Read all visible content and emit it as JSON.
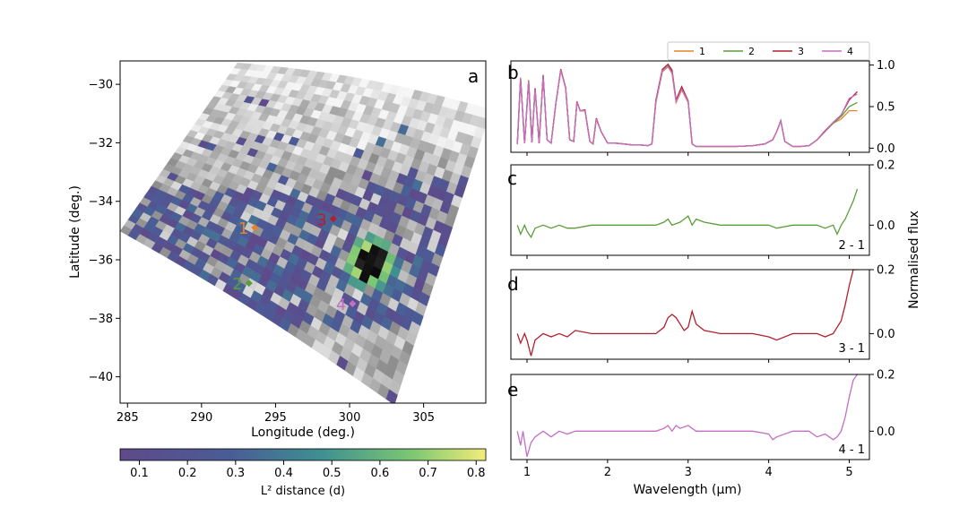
{
  "chart_data": [
    {
      "panel": "a",
      "type": "heatmap",
      "panel_label": "a",
      "xlabel": "Longitude (deg.)",
      "ylabel": "Latitude (deg.)",
      "xlim": [
        284.5,
        309.2
      ],
      "ylim": [
        -40.9,
        -29.2
      ],
      "xticks": [
        285,
        290,
        295,
        300,
        305
      ],
      "yticks": [
        -30,
        -32,
        -34,
        -36,
        -38,
        -40
      ],
      "colorbar": {
        "label": "L² distance (d)",
        "range": [
          0.06,
          0.82
        ],
        "ticks": [
          0.1,
          0.2,
          0.3,
          0.4,
          0.5,
          0.6,
          0.7,
          0.8
        ]
      },
      "points": [
        {
          "label": "1",
          "lon": 293.6,
          "lat": -34.9,
          "color": "#e8822a"
        },
        {
          "label": "2",
          "lon": 293.2,
          "lat": -36.8,
          "color": "#5a9e3a"
        },
        {
          "label": "3",
          "lon": 298.9,
          "lat": -34.6,
          "color": "#b2202e"
        },
        {
          "label": "4",
          "lon": 300.2,
          "lat": -37.5,
          "color": "#c46fc4"
        }
      ]
    },
    {
      "panel": "b",
      "type": "line",
      "panel_label": "b",
      "ylim": [
        -0.05,
        1.05
      ],
      "yticks": [
        0.0,
        0.5,
        1.0
      ],
      "legend": {
        "placement": "top-right",
        "entries": [
          "1",
          "2",
          "3",
          "4"
        ]
      },
      "x": [
        0.88,
        0.92,
        0.97,
        1.02,
        1.06,
        1.1,
        1.15,
        1.2,
        1.25,
        1.3,
        1.36,
        1.42,
        1.48,
        1.53,
        1.58,
        1.62,
        1.66,
        1.72,
        1.78,
        1.82,
        1.86,
        1.92,
        2.0,
        2.1,
        2.2,
        2.3,
        2.4,
        2.5,
        2.55,
        2.6,
        2.68,
        2.75,
        2.8,
        2.85,
        2.92,
        3.0,
        3.05,
        3.1,
        3.2,
        3.4,
        3.6,
        3.8,
        3.95,
        4.05,
        4.1,
        4.15,
        4.2,
        4.3,
        4.4,
        4.5,
        4.6,
        4.7,
        4.8,
        4.9,
        5.0,
        5.1
      ],
      "series": [
        {
          "name": "1",
          "color": "#e8822a",
          "values": [
            0.05,
            0.85,
            0.06,
            0.82,
            0.07,
            0.72,
            0.06,
            0.88,
            0.1,
            0.06,
            0.55,
            0.95,
            0.72,
            0.1,
            0.08,
            0.55,
            0.45,
            0.45,
            0.08,
            0.05,
            0.35,
            0.2,
            0.06,
            0.06,
            0.05,
            0.04,
            0.04,
            0.03,
            0.05,
            0.55,
            0.92,
            0.98,
            0.9,
            0.55,
            0.7,
            0.55,
            0.05,
            0.02,
            0.02,
            0.02,
            0.02,
            0.03,
            0.05,
            0.1,
            0.2,
            0.33,
            0.08,
            0.02,
            0.02,
            0.03,
            0.1,
            0.2,
            0.3,
            0.35,
            0.45,
            0.45
          ]
        },
        {
          "name": "2",
          "color": "#5a9e3a",
          "values": [
            0.05,
            0.84,
            0.06,
            0.81,
            0.07,
            0.71,
            0.06,
            0.87,
            0.1,
            0.06,
            0.55,
            0.94,
            0.72,
            0.1,
            0.08,
            0.55,
            0.45,
            0.45,
            0.08,
            0.05,
            0.35,
            0.2,
            0.06,
            0.06,
            0.05,
            0.04,
            0.04,
            0.03,
            0.05,
            0.56,
            0.93,
            0.99,
            0.92,
            0.57,
            0.72,
            0.56,
            0.05,
            0.02,
            0.02,
            0.02,
            0.02,
            0.03,
            0.05,
            0.1,
            0.2,
            0.33,
            0.08,
            0.02,
            0.02,
            0.03,
            0.1,
            0.2,
            0.3,
            0.38,
            0.5,
            0.55
          ]
        },
        {
          "name": "3",
          "color": "#b2202e",
          "values": [
            0.05,
            0.84,
            0.06,
            0.81,
            0.07,
            0.72,
            0.06,
            0.88,
            0.1,
            0.06,
            0.55,
            0.95,
            0.73,
            0.1,
            0.08,
            0.56,
            0.45,
            0.46,
            0.08,
            0.05,
            0.36,
            0.2,
            0.06,
            0.06,
            0.05,
            0.04,
            0.04,
            0.03,
            0.05,
            0.58,
            0.95,
            1.01,
            0.94,
            0.58,
            0.74,
            0.57,
            0.05,
            0.02,
            0.02,
            0.02,
            0.02,
            0.03,
            0.05,
            0.1,
            0.2,
            0.33,
            0.08,
            0.02,
            0.02,
            0.03,
            0.1,
            0.21,
            0.31,
            0.4,
            0.58,
            0.68
          ]
        },
        {
          "name": "4",
          "color": "#c46fc4",
          "values": [
            0.05,
            0.84,
            0.06,
            0.81,
            0.07,
            0.71,
            0.06,
            0.87,
            0.1,
            0.06,
            0.55,
            0.94,
            0.72,
            0.1,
            0.08,
            0.55,
            0.45,
            0.45,
            0.08,
            0.05,
            0.35,
            0.2,
            0.06,
            0.06,
            0.05,
            0.04,
            0.04,
            0.03,
            0.05,
            0.56,
            0.93,
            0.98,
            0.91,
            0.56,
            0.71,
            0.56,
            0.05,
            0.02,
            0.02,
            0.02,
            0.02,
            0.03,
            0.05,
            0.1,
            0.2,
            0.33,
            0.08,
            0.02,
            0.02,
            0.03,
            0.1,
            0.2,
            0.31,
            0.4,
            0.6,
            0.65
          ]
        }
      ]
    },
    {
      "panel": "c",
      "type": "line",
      "panel_label": "c",
      "annotation": "2 - 1",
      "ylim": [
        -0.1,
        0.2
      ],
      "yticks": [
        0.0,
        0.2
      ],
      "x": [
        0.88,
        0.92,
        0.97,
        1.0,
        1.05,
        1.1,
        1.2,
        1.3,
        1.4,
        1.5,
        1.6,
        1.8,
        2.0,
        2.2,
        2.4,
        2.6,
        2.7,
        2.75,
        2.8,
        2.9,
        2.95,
        3.0,
        3.05,
        3.1,
        3.2,
        3.4,
        3.6,
        3.8,
        4.0,
        4.1,
        4.3,
        4.5,
        4.6,
        4.7,
        4.8,
        4.85,
        4.9,
        4.95,
        5.0,
        5.05,
        5.1
      ],
      "series": [
        {
          "name": "2 - 1",
          "color": "#5a9e3a",
          "values": [
            0.0,
            -0.03,
            0.0,
            -0.02,
            -0.04,
            -0.01,
            0.0,
            -0.01,
            0.0,
            -0.01,
            -0.01,
            0.0,
            0.0,
            0.0,
            0.0,
            0.0,
            0.01,
            0.02,
            0.0,
            0.01,
            0.02,
            0.03,
            0.0,
            0.02,
            0.01,
            0.0,
            0.0,
            0.0,
            0.0,
            -0.01,
            0.0,
            0.0,
            0.0,
            -0.01,
            0.0,
            -0.03,
            0.0,
            0.02,
            0.05,
            0.08,
            0.12
          ]
        }
      ]
    },
    {
      "panel": "d",
      "type": "line",
      "panel_label": "d",
      "annotation": "3 - 1",
      "ylim": [
        -0.08,
        0.2
      ],
      "yticks": [
        0.0,
        0.2
      ],
      "x": [
        0.88,
        0.92,
        0.97,
        1.0,
        1.05,
        1.1,
        1.2,
        1.3,
        1.4,
        1.5,
        1.6,
        1.8,
        2.0,
        2.2,
        2.4,
        2.6,
        2.7,
        2.75,
        2.8,
        2.85,
        2.9,
        2.95,
        3.0,
        3.05,
        3.1,
        3.2,
        3.4,
        3.6,
        3.8,
        4.0,
        4.1,
        4.3,
        4.5,
        4.6,
        4.7,
        4.8,
        4.85,
        4.9,
        4.95,
        5.0,
        5.05,
        5.1
      ],
      "series": [
        {
          "name": "3 - 1",
          "color": "#b2202e",
          "values": [
            0.0,
            -0.03,
            0.0,
            -0.02,
            -0.07,
            -0.02,
            0.0,
            -0.01,
            0.0,
            -0.01,
            0.01,
            0.0,
            0.0,
            0.0,
            0.0,
            0.0,
            0.02,
            0.05,
            0.06,
            0.05,
            0.03,
            0.01,
            0.02,
            0.07,
            0.03,
            0.01,
            0.0,
            0.0,
            0.0,
            -0.01,
            -0.02,
            0.0,
            0.0,
            0.0,
            -0.01,
            0.0,
            0.02,
            0.04,
            0.09,
            0.15,
            0.2,
            0.2
          ]
        }
      ]
    },
    {
      "panel": "e",
      "type": "line",
      "panel_label": "e",
      "annotation": "4 - 1",
      "xlabel": "Wavelength (µm)",
      "xlim": [
        0.8,
        5.25
      ],
      "xticks": [
        1,
        2,
        3,
        4,
        5
      ],
      "ylim": [
        -0.1,
        0.2
      ],
      "yticks": [
        0.0,
        0.2
      ],
      "shared_ylabel": "Normalised flux",
      "x": [
        0.88,
        0.92,
        0.95,
        1.0,
        1.05,
        1.1,
        1.2,
        1.3,
        1.4,
        1.5,
        1.6,
        1.8,
        2.0,
        2.2,
        2.4,
        2.6,
        2.7,
        2.75,
        2.8,
        2.85,
        2.9,
        3.0,
        3.05,
        3.1,
        3.2,
        3.4,
        3.6,
        3.8,
        4.0,
        4.05,
        4.1,
        4.3,
        4.5,
        4.6,
        4.7,
        4.8,
        4.85,
        4.9,
        4.95,
        5.0,
        5.05,
        5.1
      ],
      "series": [
        {
          "name": "4 - 1",
          "color": "#c46fc4",
          "values": [
            0.0,
            -0.05,
            0.0,
            -0.09,
            -0.04,
            -0.02,
            0.0,
            -0.02,
            0.0,
            -0.01,
            0.0,
            0.0,
            0.0,
            0.0,
            0.0,
            0.0,
            0.01,
            0.02,
            0.0,
            0.02,
            0.01,
            0.02,
            0.01,
            0.0,
            0.0,
            0.0,
            0.0,
            0.0,
            -0.01,
            -0.03,
            -0.02,
            0.0,
            0.0,
            -0.02,
            -0.01,
            -0.03,
            -0.02,
            0.0,
            0.05,
            0.12,
            0.18,
            0.2
          ]
        }
      ]
    }
  ]
}
